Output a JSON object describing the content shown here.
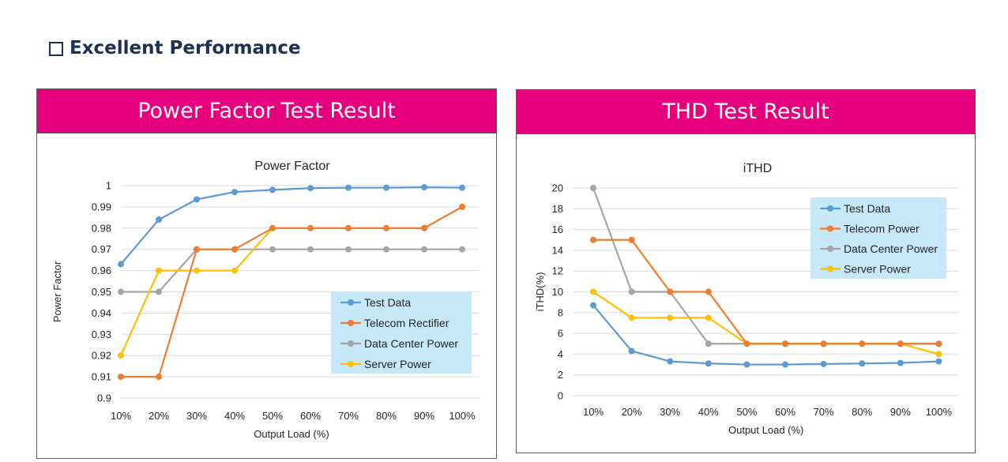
{
  "heading": {
    "text": "Excellent Performance",
    "icon": "checkbox-icon"
  },
  "panels": {
    "left": {
      "header": "Power Factor Test Result"
    },
    "right": {
      "header": "THD Test Result"
    }
  },
  "colors": {
    "header_bg": "#e6007e",
    "legend_bg": "#c6e8f8",
    "test_data": "#5b9bd5",
    "telecom": "#ed7d31",
    "data_center": "#a5a5a5",
    "server": "#ffc000"
  },
  "chart_data": [
    {
      "type": "line",
      "title": "Power Factor",
      "xlabel": "Output Load (%)",
      "ylabel": "Power Factor",
      "categories": [
        "10%",
        "20%",
        "30%",
        "40%",
        "50%",
        "60%",
        "70%",
        "80%",
        "90%",
        "100%"
      ],
      "ylim": [
        0.9,
        1.0
      ],
      "yticks": [
        0.9,
        0.91,
        0.92,
        0.93,
        0.94,
        0.95,
        0.96,
        0.97,
        0.98,
        0.99,
        1
      ],
      "ytick_labels": [
        "0.9",
        "0.91",
        "0.92",
        "0.93",
        "0.94",
        "0.95",
        "0.96",
        "0.97",
        "0.98",
        "0.99",
        "1"
      ],
      "grid": true,
      "legend_position": "lower-right",
      "series": [
        {
          "name": "Test Data",
          "color": "#5b9bd5",
          "values": [
            0.963,
            0.984,
            0.9935,
            0.997,
            0.998,
            0.9988,
            0.999,
            0.999,
            0.9992,
            0.999
          ]
        },
        {
          "name": "Telecom Rectifier",
          "color": "#ed7d31",
          "values": [
            0.91,
            0.91,
            0.97,
            0.97,
            0.98,
            0.98,
            0.98,
            0.98,
            0.98,
            0.99
          ]
        },
        {
          "name": "Data Center Power",
          "color": "#a5a5a5",
          "values": [
            0.95,
            0.95,
            0.97,
            0.97,
            0.97,
            0.97,
            0.97,
            0.97,
            0.97,
            0.97
          ]
        },
        {
          "name": "Server Power",
          "color": "#ffc000",
          "values": [
            0.92,
            0.96,
            0.96,
            0.96,
            0.98,
            0.98,
            0.98,
            0.98,
            0.98,
            0.99
          ]
        }
      ]
    },
    {
      "type": "line",
      "title": "iTHD",
      "xlabel": "Output Load (%)",
      "ylabel": "iTHD(%)",
      "categories": [
        "10%",
        "20%",
        "30%",
        "40%",
        "50%",
        "60%",
        "70%",
        "80%",
        "90%",
        "100%"
      ],
      "ylim": [
        0,
        20
      ],
      "yticks": [
        0,
        2,
        4,
        6,
        8,
        10,
        12,
        14,
        16,
        18,
        20
      ],
      "ytick_labels": [
        "0",
        "2",
        "4",
        "6",
        "8",
        "10",
        "12",
        "14",
        "16",
        "18",
        "20"
      ],
      "grid": true,
      "legend_position": "upper-right",
      "series": [
        {
          "name": "Test Data",
          "color": "#5b9bd5",
          "values": [
            8.7,
            4.3,
            3.3,
            3.1,
            3.0,
            3.0,
            3.05,
            3.1,
            3.15,
            3.3
          ]
        },
        {
          "name": "Telecom Power",
          "color": "#ed7d31",
          "values": [
            15,
            15,
            10,
            10,
            5,
            5,
            5,
            5,
            5,
            5
          ]
        },
        {
          "name": "Data Center Power",
          "color": "#a5a5a5",
          "values": [
            20,
            10,
            10,
            5,
            5,
            5,
            5,
            5,
            5,
            5
          ]
        },
        {
          "name": "Server Power",
          "color": "#ffc000",
          "values": [
            10,
            7.5,
            7.5,
            7.5,
            5,
            5,
            5,
            5,
            5,
            4
          ]
        }
      ]
    }
  ]
}
